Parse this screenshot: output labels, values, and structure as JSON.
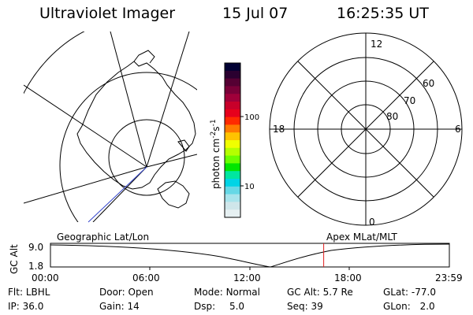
{
  "header": {
    "instrument": "Ultraviolet Imager",
    "date": "15 Jul 07",
    "time": "16:25:35 UT"
  },
  "colorbar": {
    "unit_main": "photon cm",
    "unit_exp1": "-2",
    "unit_s": "s",
    "unit_exp2": "-1",
    "tick_labels": [
      "100",
      "10"
    ],
    "colors": [
      "#000033",
      "#2a0030",
      "#550033",
      "#7a0038",
      "#a0003a",
      "#c8002a",
      "#e6001c",
      "#ff2a00",
      "#ff7a00",
      "#ffc300",
      "#f0ff00",
      "#b4ff00",
      "#6aff00",
      "#00e600",
      "#00e6a0",
      "#00d4e6",
      "#66d8e6",
      "#a8e4ec",
      "#cfe6ea",
      "#e6f0f2"
    ],
    "levels": [
      100,
      10
    ]
  },
  "polar_plot": {
    "mlt_labels": [
      "12",
      "18",
      "6",
      "0"
    ],
    "lat_labels": [
      "60",
      "70",
      "80"
    ]
  },
  "timeline": {
    "left_caption": "Geographic Lat/Lon",
    "right_caption": "Apex MLat/MLT",
    "axis_title": "GC Alt",
    "y_labels": [
      "9.0",
      "1.8"
    ],
    "x_labels": [
      "00:00",
      "06:00",
      "12:00",
      "18:00",
      "23:59"
    ],
    "cursor_time_hours": 16.43
  },
  "info": {
    "flt_label": "Flt:",
    "flt_value": "LBHL",
    "door_label": "Door:",
    "door_value": "Open",
    "mode_label": "Mode:",
    "mode_value": "Normal",
    "gcalt_label": "GC Alt:",
    "gcalt_value": "5.7 Re",
    "glat_label": "GLat:",
    "glat_value": "-77.0",
    "ip_label": "IP:",
    "ip_value": "36.0",
    "gain_label": "Gain:",
    "gain_value": "14",
    "dsp_label": "Dsp:",
    "dsp_value": "5.0",
    "seq_label": "Seq:",
    "seq_value": "39",
    "glon_label": "GLon:",
    "glon_value": "2.0"
  }
}
